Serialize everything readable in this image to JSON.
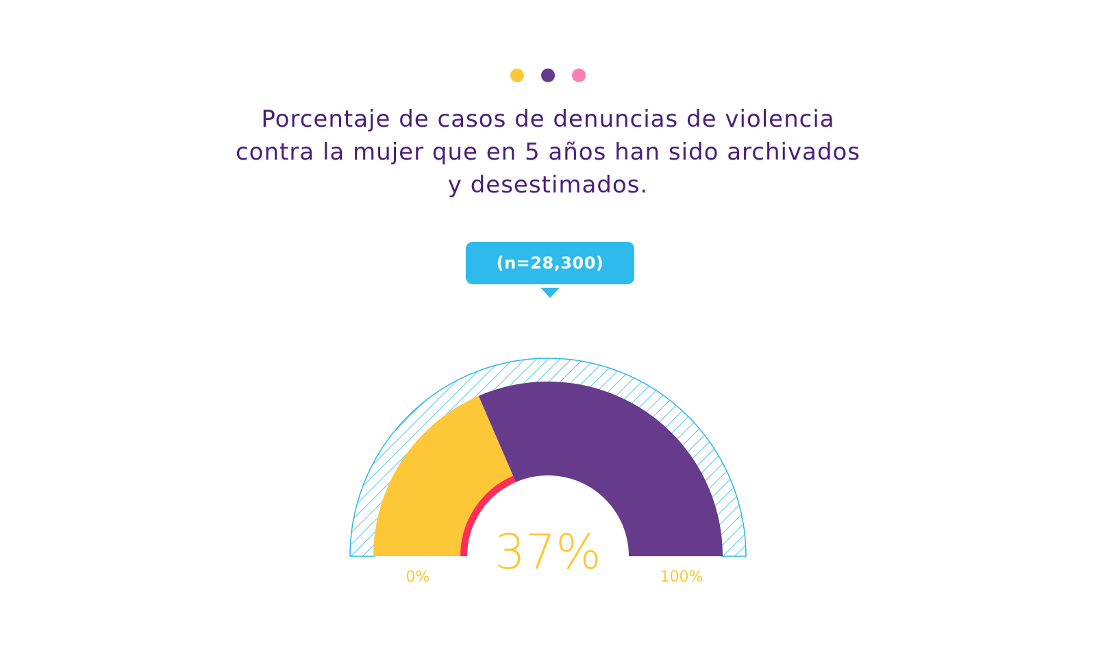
{
  "decor": {
    "dots": [
      {
        "name": "yellow-dot",
        "color": "#fcc838"
      },
      {
        "name": "purple-dot",
        "color": "#663b8b"
      },
      {
        "name": "pink-dot",
        "color": "#ff7eb4"
      }
    ]
  },
  "chart_data": {
    "type": "gauge",
    "title_lines": [
      "Porcentaje de casos de denuncias de violencia",
      "contra la mujer que en 5 años han sido archivados",
      "y desestimados."
    ],
    "sample_label": "(n=28,300)",
    "value": 37,
    "value_label": "37%",
    "min": 0,
    "max": 100,
    "min_label": "0%",
    "max_label": "100%",
    "colors": {
      "value_segment": "#fcc838",
      "remainder_segment": "#663b8b",
      "inner_marker": "#ff2d5a",
      "outer_hatch": "#2ab6ea",
      "badge": "#2ebbeb",
      "title": "#4a1f7a",
      "labels": "#fcc838"
    }
  }
}
